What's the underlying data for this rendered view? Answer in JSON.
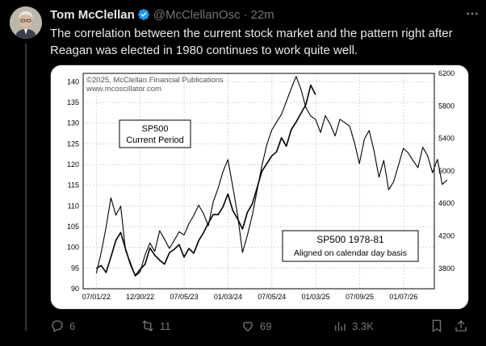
{
  "tweet": {
    "author_name": "Tom McClellan",
    "handle": "@McClellanOsc",
    "separator": "·",
    "time": "22m",
    "text": "The correlation between the current stock market and the pattern right after Reagan was elected in 1980 continues to work quite well.",
    "more_icon": "more-horizontal-icon",
    "verified_icon": "verified-badge-icon"
  },
  "actions": {
    "replies": "6",
    "retweets": "11",
    "likes": "69",
    "views": "3.3K"
  },
  "colors": {
    "background": "#000000",
    "text": "#e7e9ea",
    "muted": "#71767b",
    "verified": "#1d9bf0"
  },
  "chart_data": {
    "type": "line",
    "copyright": "©2025, McClellan Financial Publications",
    "site": "www.mcoscillator.com",
    "x_tick_labels": [
      "07/01/22",
      "12/30/22",
      "07/05/23",
      "01/03/24",
      "07/05/24",
      "01/03/25",
      "07/09/25",
      "01/07/26"
    ],
    "left_axis": {
      "ticks": [
        90,
        95,
        100,
        105,
        110,
        115,
        120,
        125,
        130,
        135,
        140
      ],
      "ylim": [
        90,
        142
      ]
    },
    "right_axis": {
      "ticks": [
        3800,
        4200,
        4600,
        5000,
        5400,
        5800,
        6200
      ],
      "ylim": [
        3550,
        6200
      ]
    },
    "grid": true,
    "series": [
      {
        "name": "SP500 Current Period",
        "label_lines": [
          "SP500",
          "Current Period"
        ],
        "axis": "right",
        "color": "#000000",
        "x": [
          0.0,
          0.02,
          0.04,
          0.06,
          0.08,
          0.1,
          0.12,
          0.14,
          0.16,
          0.18,
          0.2,
          0.22,
          0.24,
          0.26,
          0.28,
          0.3,
          0.32,
          0.34,
          0.36,
          0.38,
          0.4,
          0.42,
          0.44,
          0.46,
          0.48,
          0.5,
          0.52,
          0.54,
          0.56,
          0.58,
          0.6,
          0.62,
          0.64,
          0.66,
          0.68,
          0.7,
          0.72,
          0.74,
          0.76,
          0.78,
          0.8,
          0.82,
          0.84,
          0.86,
          0.88,
          0.9
        ],
        "y": [
          3800,
          3850,
          3750,
          3950,
          4150,
          4250,
          4050,
          3850,
          3700,
          3780,
          3850,
          4050,
          3950,
          3900,
          3850,
          4000,
          4050,
          4100,
          3950,
          4050,
          4000,
          4150,
          4250,
          4350,
          4450,
          4450,
          4550,
          4700,
          4500,
          4400,
          4300,
          4500,
          4600,
          4800,
          5000,
          5100,
          5200,
          5250,
          5400,
          5300,
          5500,
          5600,
          5700,
          5800,
          6050,
          5950
        ]
      },
      {
        "name": "SP500 1978-81",
        "label_lines": [
          "SP500 1978-81",
          "Aligned on calendar day basis"
        ],
        "axis": "left",
        "color": "#000000",
        "x": [
          0.0,
          0.02,
          0.04,
          0.06,
          0.08,
          0.1,
          0.12,
          0.14,
          0.16,
          0.18,
          0.2,
          0.22,
          0.24,
          0.26,
          0.28,
          0.3,
          0.32,
          0.34,
          0.36,
          0.38,
          0.4,
          0.42,
          0.44,
          0.46,
          0.48,
          0.5,
          0.52,
          0.54,
          0.56,
          0.58,
          0.6,
          0.62,
          0.64,
          0.66,
          0.68,
          0.7,
          0.72,
          0.74,
          0.76,
          0.78,
          0.8,
          0.82,
          0.84,
          0.86,
          0.88,
          0.9,
          0.92,
          0.94,
          0.96,
          0.98,
          1.0,
          1.02,
          1.04,
          1.06,
          1.08,
          1.1,
          1.12,
          1.14,
          1.16,
          1.18,
          1.2,
          1.22,
          1.24,
          1.26,
          1.28,
          1.3,
          1.32,
          1.34,
          1.36,
          1.38,
          1.4,
          1.42,
          1.44
        ],
        "y": [
          94,
          99,
          105,
          112,
          108,
          110,
          99,
          96,
          93,
          94,
          98,
          101,
          99,
          104,
          102,
          100,
          102,
          104,
          103,
          106,
          108,
          110,
          108,
          105,
          111,
          114,
          118,
          121,
          115,
          108,
          99,
          103,
          108,
          114,
          120,
          125,
          128,
          130,
          132,
          135,
          138,
          141,
          138,
          134,
          132,
          131,
          128,
          132,
          130,
          127,
          131,
          130,
          129,
          125,
          120,
          126,
          128,
          123,
          117,
          121,
          114,
          116,
          120,
          124,
          123,
          121,
          119,
          124,
          122,
          118,
          121,
          115,
          116
        ]
      }
    ]
  }
}
